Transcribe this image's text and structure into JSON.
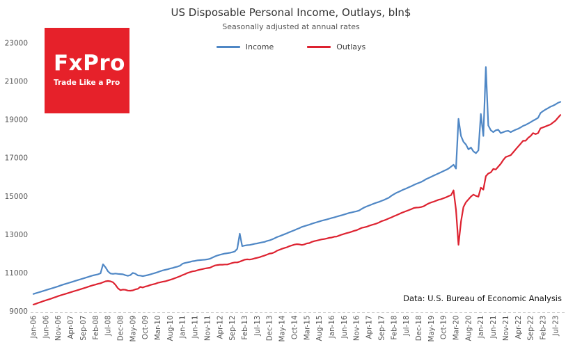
{
  "header": {
    "title": "US Disposable Personal Income, Outlays, bln$",
    "subtitle": "Seasonally adjusted at annual rates"
  },
  "logo": {
    "name": "FxPro",
    "tagline": "Trade Like a Pro",
    "bg_color": "#e6212a",
    "text_color": "#ffffff"
  },
  "legend": {
    "items": [
      {
        "label": "Income",
        "color": "#4f87c5"
      },
      {
        "label": "Outlays",
        "color": "#dd2230"
      }
    ]
  },
  "footnote": {
    "text": "Data: U.S. Bureau of Economic Analysis"
  },
  "chart_data": {
    "type": "line",
    "title": "US Disposable Personal Income, Outlays, bln$",
    "subtitle": "Seasonally adjusted at annual rates",
    "x_frequency": "monthly",
    "x_start": "Jan-06",
    "x_end": "Sep-23",
    "x_tick_every": 5,
    "x_tick_labels": [
      "Jan-06",
      "Jun-06",
      "Nov-06",
      "Apr-07",
      "Sep-07",
      "Feb-08",
      "Jul-08",
      "Dec-08",
      "May-09",
      "Oct-09",
      "Mar-10",
      "Aug-10",
      "Jan-11",
      "Jun-11",
      "Nov-11",
      "Apr-12",
      "Sep-12",
      "Feb-13",
      "Jul-13",
      "Dec-13",
      "May-14",
      "Oct-14",
      "Mar-15",
      "Aug-15",
      "Jan-16",
      "Jun-16",
      "Nov-16",
      "Apr-17",
      "Sep-17",
      "Feb-18",
      "Jul-18",
      "Dec-18",
      "May-19",
      "Oct-19",
      "Mar-20",
      "Aug-20",
      "Jan-21",
      "Jun-21",
      "Nov-21",
      "Apr-22",
      "Sep-22",
      "Feb-23",
      "Jul-23"
    ],
    "ylim": [
      9000,
      23000
    ],
    "y_ticks": [
      9000,
      11000,
      13000,
      15000,
      17000,
      19000,
      21000,
      23000
    ],
    "grid": false,
    "legend_position": "top-center",
    "series": [
      {
        "name": "Income",
        "color": "#4f87c5",
        "values": [
          9900,
          9940,
          9980,
          10020,
          10060,
          10100,
          10140,
          10180,
          10220,
          10260,
          10300,
          10350,
          10390,
          10430,
          10470,
          10510,
          10550,
          10590,
          10630,
          10670,
          10710,
          10750,
          10790,
          10830,
          10870,
          10900,
          10930,
          10980,
          11450,
          11290,
          11080,
          10970,
          10950,
          10970,
          10950,
          10940,
          10930,
          10880,
          10850,
          10890,
          11000,
          10960,
          10870,
          10860,
          10830,
          10860,
          10890,
          10920,
          10960,
          11000,
          11040,
          11090,
          11130,
          11160,
          11190,
          11230,
          11260,
          11300,
          11330,
          11380,
          11480,
          11520,
          11550,
          11580,
          11610,
          11630,
          11660,
          11670,
          11680,
          11690,
          11710,
          11740,
          11800,
          11860,
          11910,
          11950,
          11980,
          12010,
          12030,
          12050,
          12080,
          12120,
          12260,
          13050,
          12400,
          12430,
          12450,
          12460,
          12490,
          12520,
          12540,
          12570,
          12600,
          12620,
          12670,
          12700,
          12750,
          12810,
          12870,
          12920,
          12970,
          13020,
          13070,
          13130,
          13180,
          13230,
          13290,
          13340,
          13400,
          13440,
          13480,
          13520,
          13570,
          13610,
          13650,
          13690,
          13730,
          13760,
          13790,
          13830,
          13870,
          13900,
          13940,
          13980,
          14010,
          14050,
          14090,
          14130,
          14160,
          14190,
          14220,
          14260,
          14340,
          14410,
          14470,
          14520,
          14570,
          14620,
          14670,
          14710,
          14760,
          14810,
          14870,
          14930,
          15030,
          15110,
          15180,
          15240,
          15300,
          15360,
          15410,
          15470,
          15530,
          15590,
          15650,
          15700,
          15750,
          15820,
          15900,
          15960,
          16020,
          16080,
          16140,
          16200,
          16260,
          16320,
          16380,
          16450,
          16550,
          16650,
          16450,
          19050,
          18150,
          17850,
          17700,
          17450,
          17550,
          17350,
          17250,
          17400,
          19300,
          18150,
          21750,
          18700,
          18450,
          18350,
          18450,
          18480,
          18300,
          18350,
          18400,
          18420,
          18350,
          18420,
          18480,
          18530,
          18600,
          18680,
          18730,
          18800,
          18870,
          18950,
          19020,
          19100,
          19350,
          19450,
          19530,
          19600,
          19680,
          19730,
          19800,
          19880,
          19930
        ]
      },
      {
        "name": "Outlays",
        "color": "#dd2230",
        "values": [
          9350,
          9390,
          9440,
          9480,
          9530,
          9570,
          9610,
          9650,
          9700,
          9740,
          9790,
          9830,
          9870,
          9910,
          9950,
          9990,
          10030,
          10070,
          10110,
          10150,
          10190,
          10230,
          10280,
          10320,
          10360,
          10390,
          10430,
          10460,
          10510,
          10560,
          10580,
          10560,
          10510,
          10380,
          10200,
          10100,
          10130,
          10120,
          10080,
          10070,
          10090,
          10140,
          10170,
          10270,
          10240,
          10290,
          10320,
          10370,
          10400,
          10430,
          10480,
          10510,
          10540,
          10560,
          10600,
          10640,
          10680,
          10730,
          10780,
          10830,
          10890,
          10940,
          11000,
          11040,
          11080,
          11100,
          11140,
          11170,
          11200,
          11230,
          11250,
          11270,
          11330,
          11390,
          11410,
          11430,
          11430,
          11440,
          11440,
          11480,
          11520,
          11550,
          11550,
          11590,
          11640,
          11690,
          11710,
          11700,
          11720,
          11760,
          11790,
          11820,
          11870,
          11910,
          11960,
          12010,
          12030,
          12080,
          12160,
          12210,
          12260,
          12300,
          12340,
          12400,
          12440,
          12480,
          12500,
          12490,
          12460,
          12490,
          12540,
          12560,
          12620,
          12660,
          12690,
          12720,
          12750,
          12770,
          12800,
          12830,
          12850,
          12890,
          12900,
          12950,
          13000,
          13040,
          13080,
          13110,
          13150,
          13200,
          13230,
          13290,
          13350,
          13380,
          13410,
          13460,
          13500,
          13540,
          13580,
          13630,
          13700,
          13740,
          13790,
          13850,
          13900,
          13960,
          14010,
          14070,
          14130,
          14180,
          14230,
          14280,
          14330,
          14390,
          14410,
          14420,
          14440,
          14480,
          14560,
          14630,
          14680,
          14720,
          14770,
          14820,
          14850,
          14900,
          14950,
          15010,
          15060,
          15310,
          14300,
          12470,
          13680,
          14440,
          14690,
          14840,
          14990,
          15090,
          15020,
          14980,
          15450,
          15350,
          16050,
          16190,
          16250,
          16430,
          16400,
          16550,
          16700,
          16900,
          17050,
          17100,
          17150,
          17300,
          17450,
          17600,
          17750,
          17900,
          17900,
          18050,
          18150,
          18300,
          18250,
          18300,
          18550,
          18600,
          18650,
          18700,
          18750,
          18850,
          18950,
          19100,
          19250
        ]
      }
    ]
  }
}
